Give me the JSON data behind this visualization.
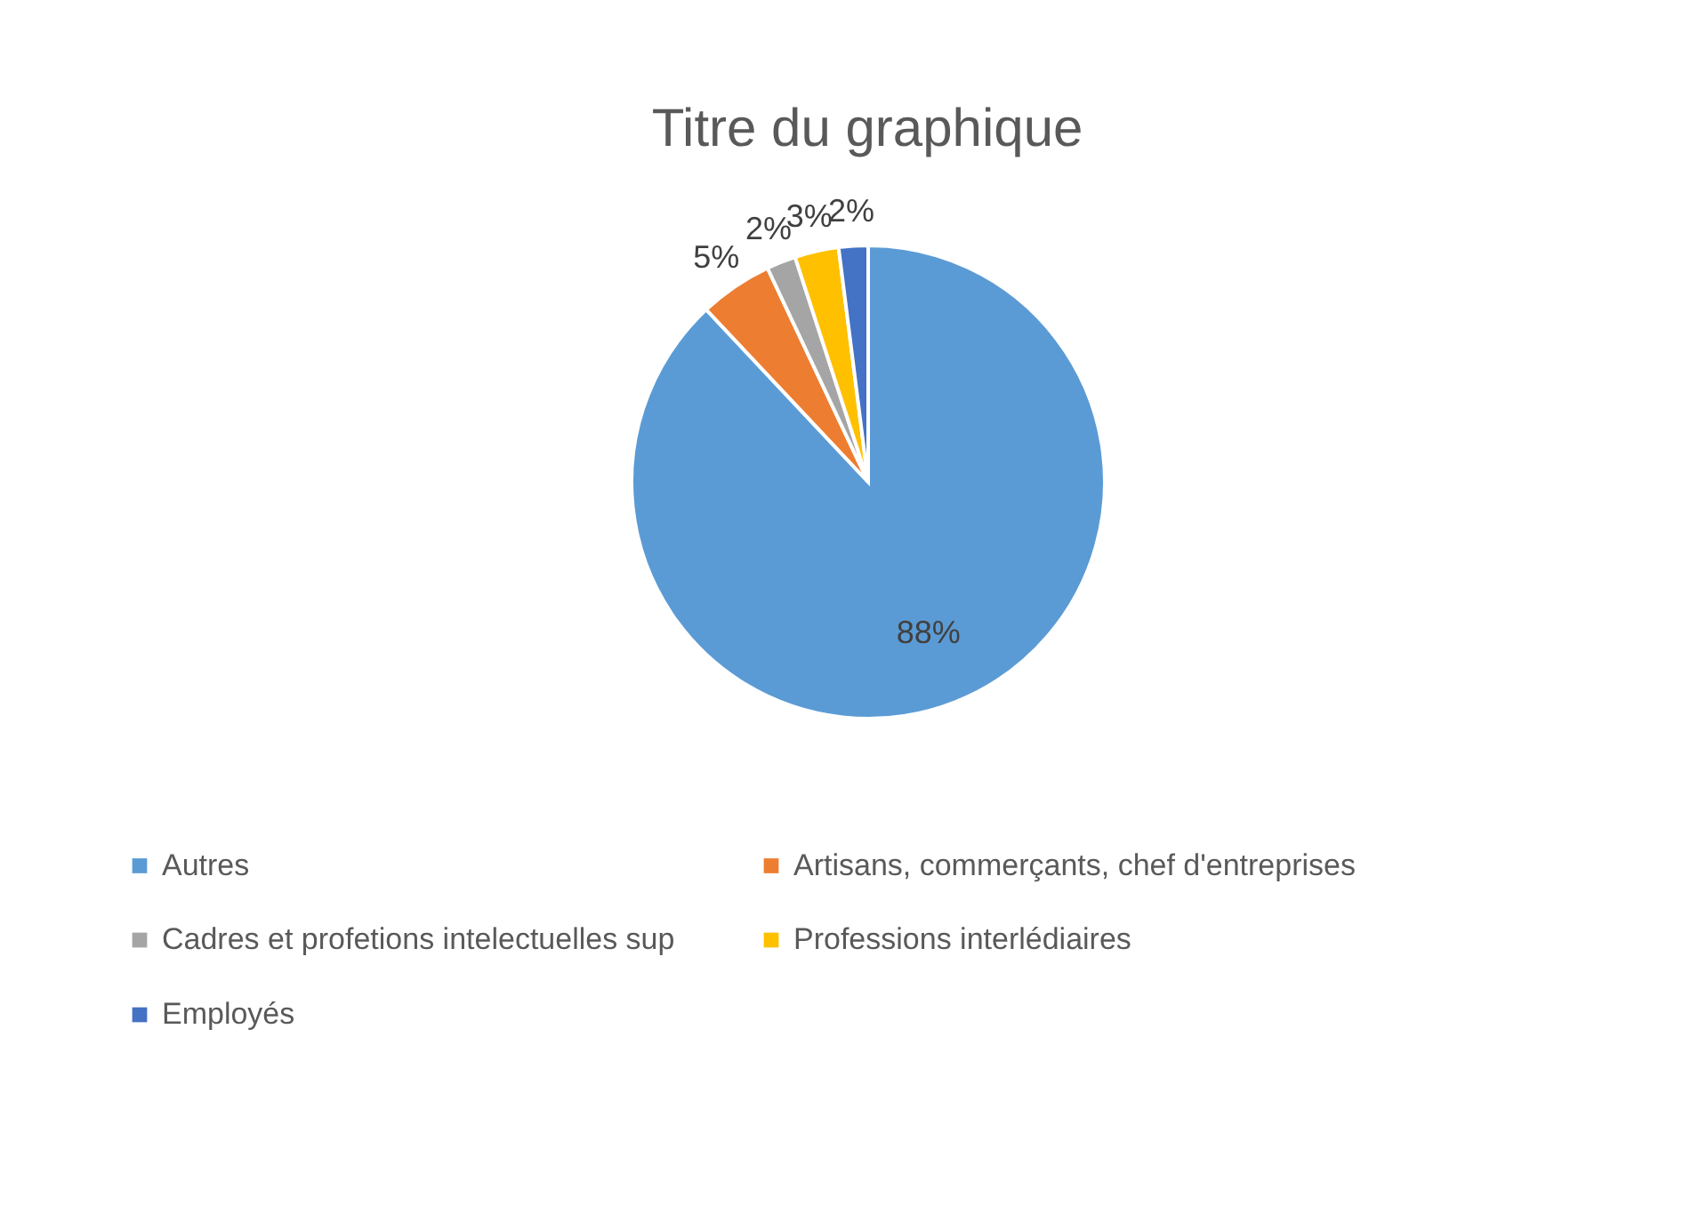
{
  "chart_data": {
    "type": "pie",
    "title": "Titre du graphique",
    "categories": [
      "Autres",
      "Artisans, commerçants, chef d'entreprises",
      "Cadres et profetions intelectuelles sup",
      "Professions interlédiaires",
      "Employés"
    ],
    "values": [
      88,
      5,
      2,
      3,
      2
    ],
    "colors": [
      "#5b9bd5",
      "#ed7d31",
      "#a5a5a5",
      "#ffc000",
      "#4472c4"
    ],
    "value_labels": [
      "88%",
      "5%",
      "2%",
      "3%",
      "2%"
    ],
    "legend": "bottom"
  }
}
